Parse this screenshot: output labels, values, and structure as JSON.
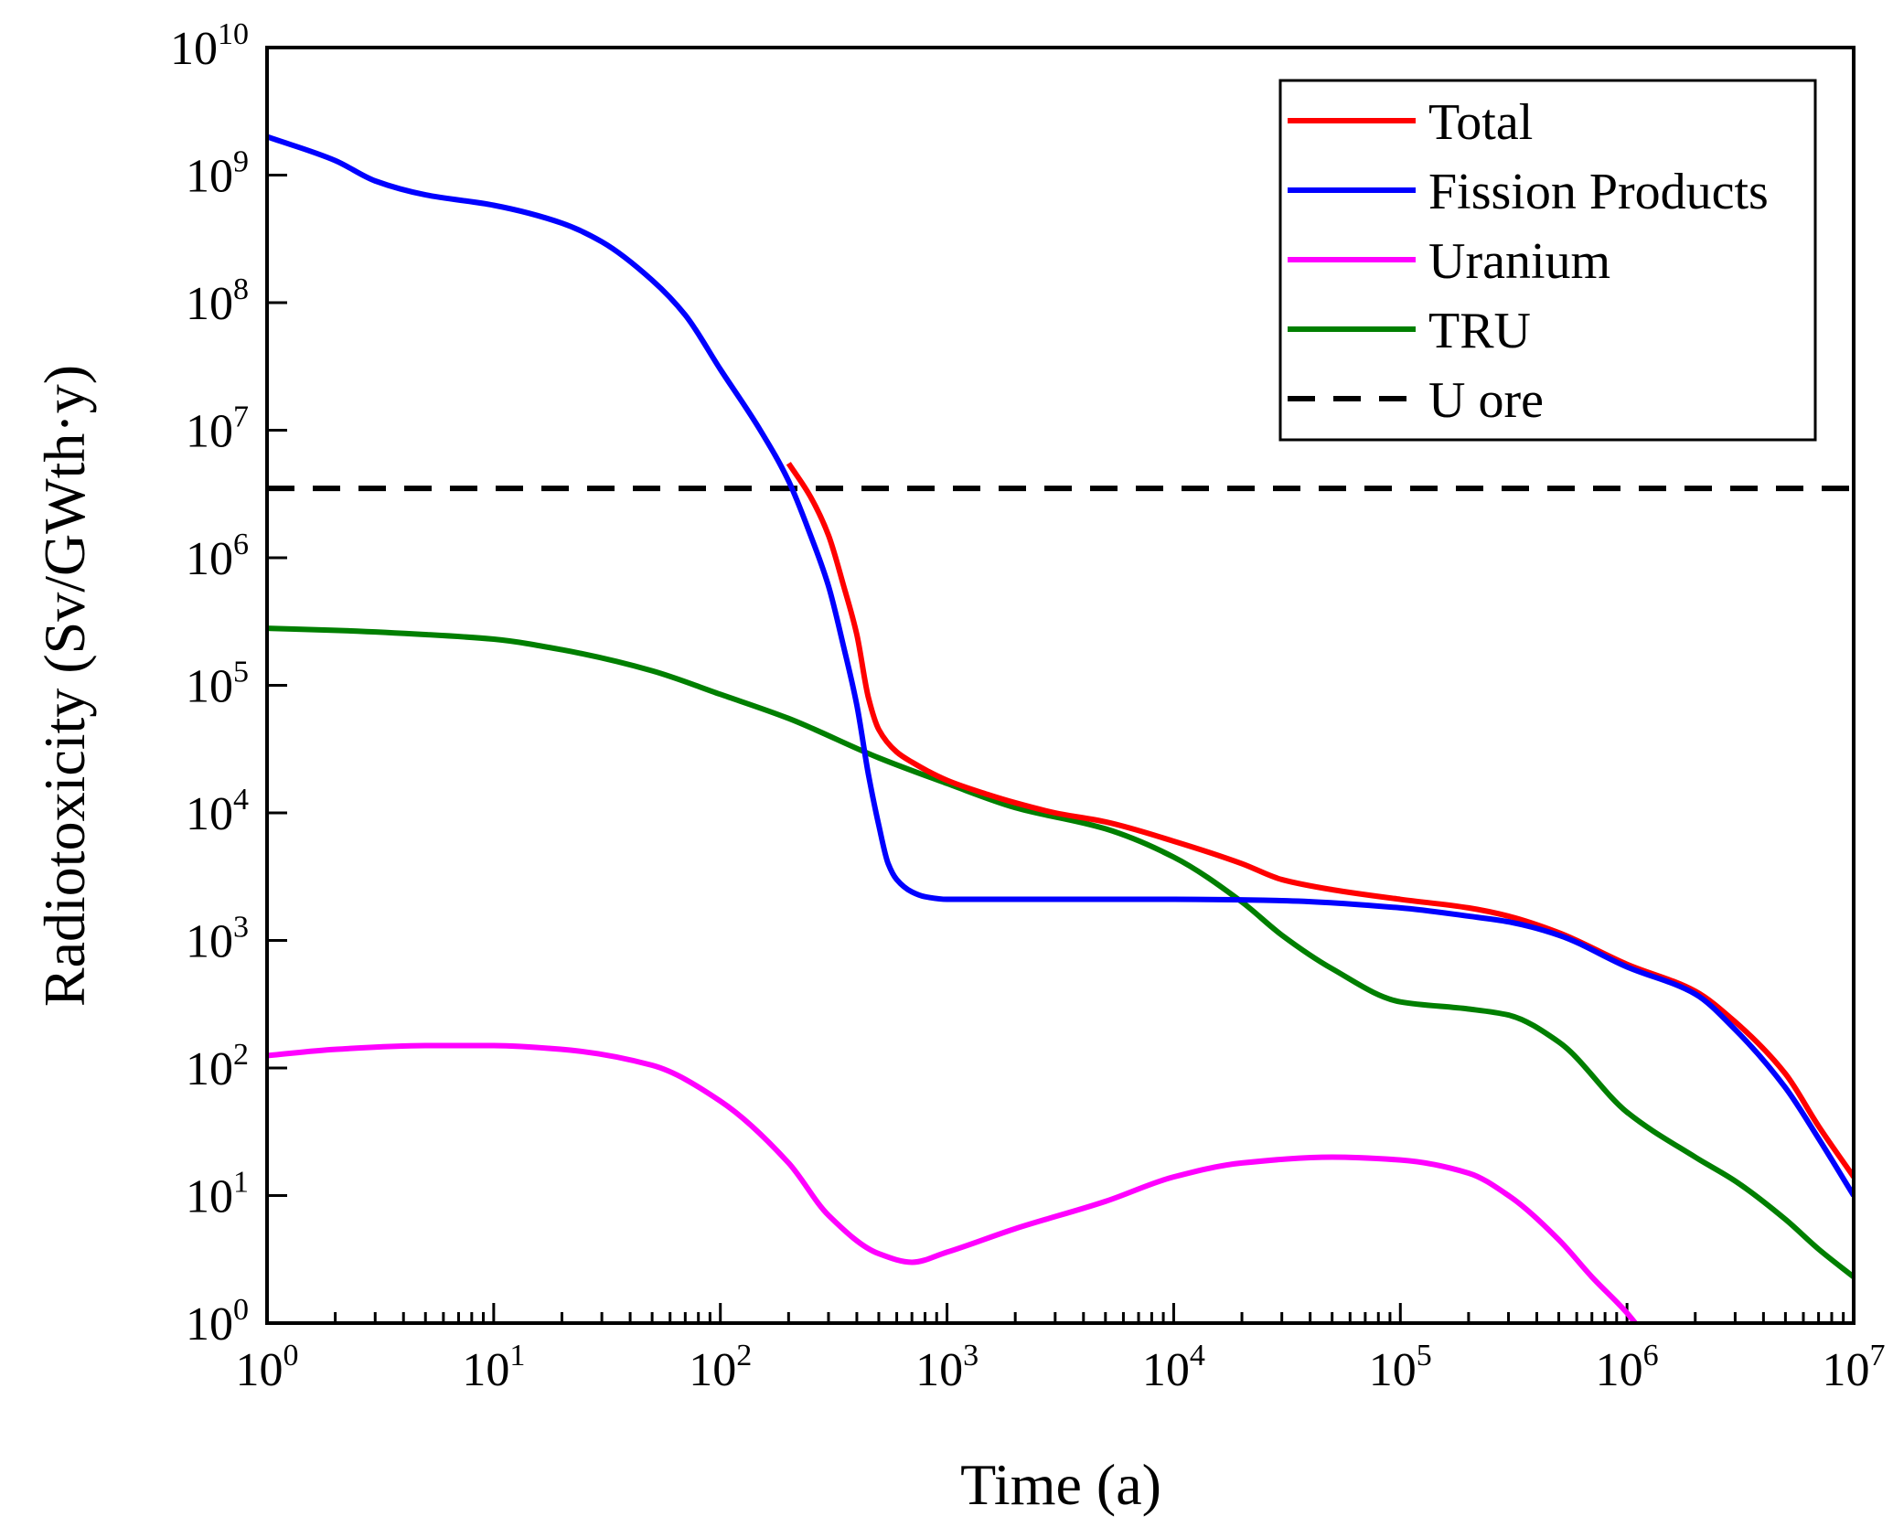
{
  "chart_data": {
    "type": "line",
    "title": "",
    "xlabel": "Time (a)",
    "ylabel": "Radiotoxicity (Sv/GWth·y)",
    "xscale": "log",
    "yscale": "log",
    "xlim": [
      1,
      10000000
    ],
    "ylim": [
      1,
      10000000000
    ],
    "x_ticks": [
      {
        "base": "10",
        "exp": "0"
      },
      {
        "base": "10",
        "exp": "1"
      },
      {
        "base": "10",
        "exp": "2"
      },
      {
        "base": "10",
        "exp": "3"
      },
      {
        "base": "10",
        "exp": "4"
      },
      {
        "base": "10",
        "exp": "5"
      },
      {
        "base": "10",
        "exp": "6"
      },
      {
        "base": "10",
        "exp": "7"
      }
    ],
    "y_ticks": [
      {
        "base": "10",
        "exp": "0"
      },
      {
        "base": "10",
        "exp": "1"
      },
      {
        "base": "10",
        "exp": "2"
      },
      {
        "base": "10",
        "exp": "3"
      },
      {
        "base": "10",
        "exp": "4"
      },
      {
        "base": "10",
        "exp": "5"
      },
      {
        "base": "10",
        "exp": "6"
      },
      {
        "base": "10",
        "exp": "7"
      },
      {
        "base": "10",
        "exp": "8"
      },
      {
        "base": "10",
        "exp": "9"
      },
      {
        "base": "10",
        "exp": "10"
      }
    ],
    "grid": false,
    "legend_position": "top-right",
    "series": [
      {
        "name": "Total",
        "color": "#ff0000",
        "dash": "solid",
        "x": [
          200,
          250,
          300,
          350,
          400,
          450,
          500,
          600,
          700,
          1000,
          1500,
          2000,
          3000,
          5000,
          10000,
          20000,
          30000,
          50000,
          100000,
          200000,
          300000,
          500000,
          1000000,
          2000000,
          3000000,
          5000000,
          7000000,
          10000000
        ],
        "y": [
          5500000,
          3000000,
          1500000,
          600000,
          250000,
          80000,
          45000,
          30000,
          25000,
          18000,
          14000,
          12000,
          10000,
          8500,
          6000,
          4000,
          3000,
          2500,
          2100,
          1800,
          1550,
          1150,
          650,
          400,
          230,
          90,
          35,
          14
        ]
      },
      {
        "name": "Fission Products",
        "color": "#0000ff",
        "dash": "solid",
        "x": [
          1,
          2,
          3,
          5,
          10,
          20,
          30,
          50,
          70,
          100,
          150,
          200,
          250,
          300,
          350,
          400,
          450,
          500,
          550,
          600,
          700,
          800,
          1000,
          2000,
          5000,
          10000,
          30000,
          100000,
          200000,
          300000,
          500000,
          1000000,
          2000000,
          3000000,
          5000000,
          7000000,
          10000000
        ],
        "y": [
          2000000000,
          1300000000,
          900000000,
          700000000,
          580000000,
          420000000,
          300000000,
          150000000,
          80000000,
          30000000,
          10000000,
          4000000,
          1500000,
          600000,
          200000,
          70000,
          20000,
          8000,
          4000,
          3000,
          2400,
          2200,
          2100,
          2100,
          2100,
          2100,
          2050,
          1800,
          1550,
          1400,
          1100,
          620,
          380,
          200,
          70,
          28,
          10
        ]
      },
      {
        "name": "Uranium",
        "color": "#ff00ff",
        "dash": "solid",
        "x": [
          1,
          2,
          5,
          10,
          20,
          50,
          100,
          200,
          300,
          500,
          700,
          1000,
          2000,
          5000,
          10000,
          20000,
          50000,
          100000,
          200000,
          300000,
          500000,
          700000,
          1000000,
          1200000
        ],
        "y": [
          125,
          140,
          150,
          150,
          140,
          105,
          55,
          18,
          7,
          3.5,
          3,
          3.6,
          5.5,
          9,
          14,
          18,
          20,
          19,
          15,
          10,
          4.5,
          2.3,
          1.2,
          0.8
        ]
      },
      {
        "name": "TRU",
        "color": "#007f00",
        "dash": "solid",
        "x": [
          1,
          2,
          5,
          10,
          20,
          50,
          100,
          200,
          500,
          1000,
          2000,
          5000,
          10000,
          20000,
          30000,
          50000,
          100000,
          200000,
          300000,
          500000,
          1000000,
          2000000,
          3000000,
          5000000,
          7000000,
          10000000
        ],
        "y": [
          280000,
          270000,
          250000,
          230000,
          190000,
          130000,
          85000,
          55000,
          27000,
          17000,
          11000,
          7500,
          4500,
          2000,
          1100,
          600,
          330,
          290,
          260,
          160,
          45,
          20,
          13,
          6.5,
          3.8,
          2.3
        ]
      },
      {
        "name": "U ore",
        "color": "#000000",
        "dash": "dashed",
        "x": [
          1,
          10000000
        ],
        "y": [
          3500000,
          3500000
        ]
      }
    ]
  }
}
